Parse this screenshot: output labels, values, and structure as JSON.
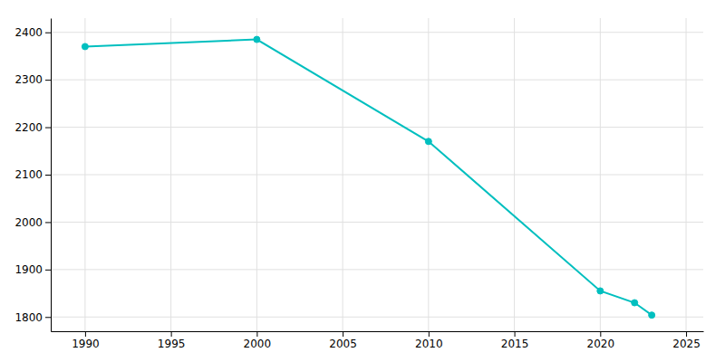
{
  "chart_data": {
    "type": "line",
    "x": [
      1990,
      2000,
      2010,
      2020,
      2022,
      2023
    ],
    "values": [
      2370,
      2385,
      2170,
      1855,
      1830,
      1804
    ],
    "color": "#00BFBF",
    "marker": "circle",
    "xlim": [
      1988,
      2026
    ],
    "ylim": [
      1770,
      2430
    ],
    "xticks": [
      1990,
      1995,
      2000,
      2005,
      2010,
      2015,
      2020,
      2025
    ],
    "yticks": [
      1800,
      1900,
      2000,
      2100,
      2200,
      2300,
      2400
    ],
    "grid": true
  }
}
